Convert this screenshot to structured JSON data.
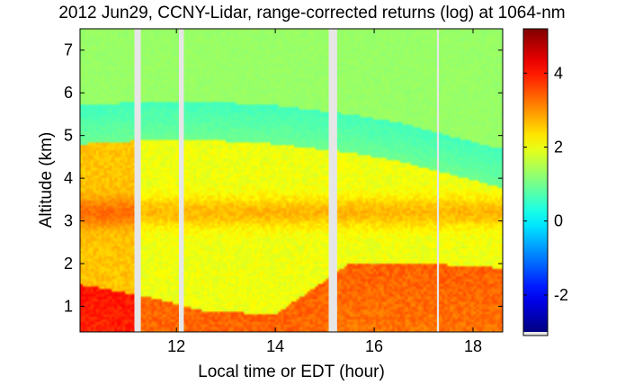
{
  "chart_data": {
    "type": "heatmap",
    "title": "2012 Jun29, CCNY-Lidar, range-corrected returns (log) at 1064-nm",
    "xlabel": "Local time or EDT (hour)",
    "ylabel": "Altitude (km)",
    "xlim": [
      10.05,
      18.6
    ],
    "ylim": [
      0.4,
      7.5
    ],
    "xticks": [
      "12",
      "14",
      "16",
      "18"
    ],
    "xtick_values": [
      12,
      14,
      16,
      18
    ],
    "yticks": [
      "1",
      "2",
      "3",
      "4",
      "5",
      "6",
      "7"
    ],
    "ytick_values": [
      1,
      2,
      3,
      4,
      5,
      6,
      7
    ],
    "colorbar": {
      "range": [
        -3.0,
        5.2
      ],
      "ticks": [
        "-2",
        "0",
        "2",
        "4"
      ],
      "tick_values": [
        -2,
        0,
        2,
        4
      ],
      "colormap": "jet"
    },
    "data_gaps_hours": [
      [
        11.15,
        11.28
      ],
      [
        12.05,
        12.15
      ],
      [
        15.08,
        15.25
      ],
      [
        17.27,
        17.31
      ]
    ],
    "layers_approx": {
      "free_troposphere_value": 1.3,
      "upper_clear_air_value": 0.6,
      "aerosol_layer_top_km": [
        [
          10.1,
          4.8
        ],
        [
          11.5,
          4.9
        ],
        [
          12.5,
          4.9
        ],
        [
          14.0,
          4.8
        ],
        [
          15.5,
          4.6
        ],
        [
          16.5,
          4.4
        ],
        [
          17.5,
          4.1
        ],
        [
          18.5,
          3.8
        ]
      ],
      "elevated_layer_value": 2.6,
      "boundary_layer_top_km": [
        [
          10.1,
          1.5
        ],
        [
          11.5,
          1.2
        ],
        [
          12.5,
          0.9
        ],
        [
          14.0,
          0.8
        ],
        [
          15.5,
          2.0
        ],
        [
          17.0,
          2.0
        ],
        [
          18.5,
          1.9
        ]
      ],
      "boundary_layer_value": 3.4
    },
    "grid": false,
    "legend": "none"
  }
}
